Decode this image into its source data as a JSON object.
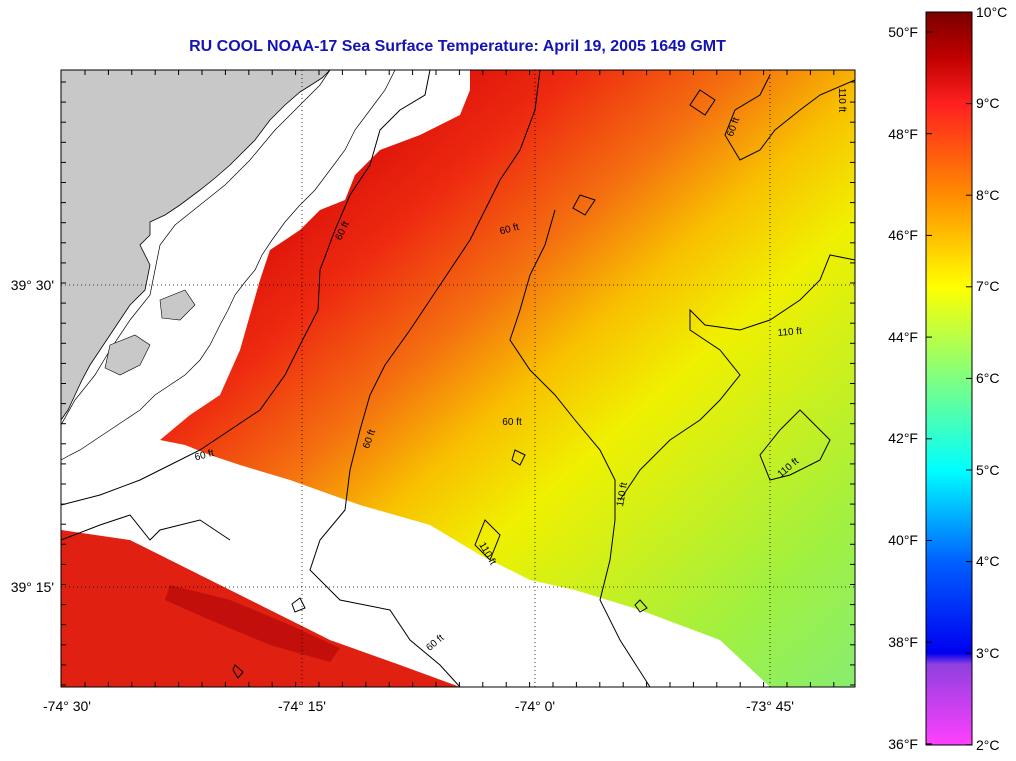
{
  "title": "RU COOL  NOAA-17  Sea Surface Temperature:  April 19, 2005 1649 GMT",
  "axes": {
    "x_ticks": [
      "-74° 30'",
      "-74° 15'",
      "-74° 0'",
      "-73° 45'"
    ],
    "y_ticks": [
      "39° 30'",
      "39° 15'"
    ]
  },
  "colorbar": {
    "celsius_labels": [
      "10°C",
      "9°C",
      "8°C",
      "7°C",
      "6°C",
      "5°C",
      "4°C",
      "3°C",
      "2°C"
    ],
    "fahrenheit_labels": [
      "50°F",
      "48°F",
      "46°F",
      "44°F",
      "42°F",
      "40°F",
      "38°F",
      "36°F"
    ]
  },
  "contour_labels": [
    "60 ft",
    "60 ft",
    "110 ft",
    "60 ft",
    "110 ft",
    "60 ft",
    "110 ft",
    "60 ft",
    "60 ft",
    "110 ft",
    "110 ft",
    "60 ft"
  ],
  "colors": {
    "land": "#c8c8c8",
    "no_data": "#ffffff",
    "title": "#1414b4"
  }
}
